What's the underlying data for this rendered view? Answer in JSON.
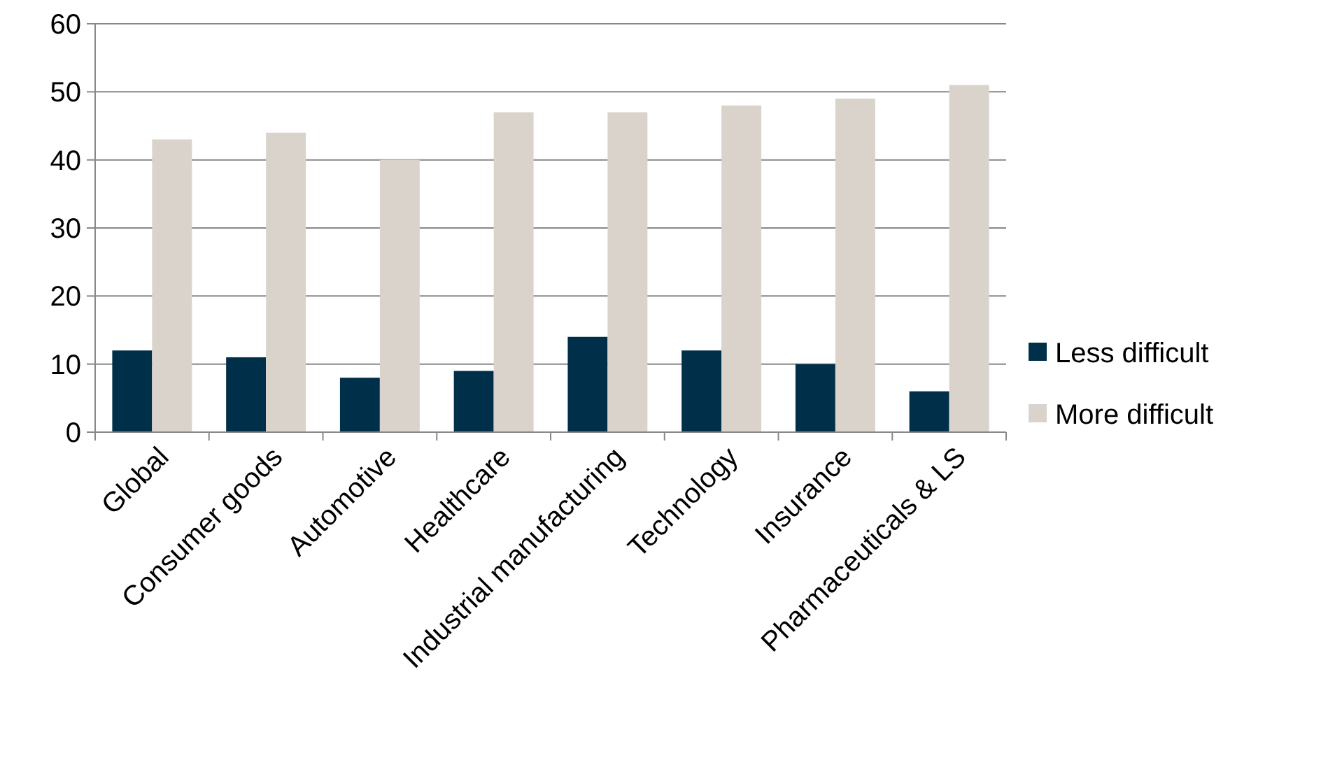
{
  "chart_data": {
    "type": "bar",
    "categories": [
      "Global",
      "Consumer goods",
      "Automotive",
      "Healthcare",
      "Industrial manufacturing",
      "Technology",
      "Insurance",
      "Pharmaceuticals & LS"
    ],
    "series": [
      {
        "name": "Less difficult",
        "color": "#003049",
        "values": [
          12,
          11,
          8,
          9,
          14,
          12,
          10,
          6
        ]
      },
      {
        "name": "More difficult",
        "color": "#d9d3cc",
        "values": [
          43,
          44,
          40,
          47,
          47,
          48,
          49,
          51
        ]
      }
    ],
    "ylim": [
      0,
      60
    ],
    "yticks": [
      0,
      10,
      20,
      30,
      40,
      50,
      60
    ],
    "grid": "y",
    "legend": "right"
  }
}
